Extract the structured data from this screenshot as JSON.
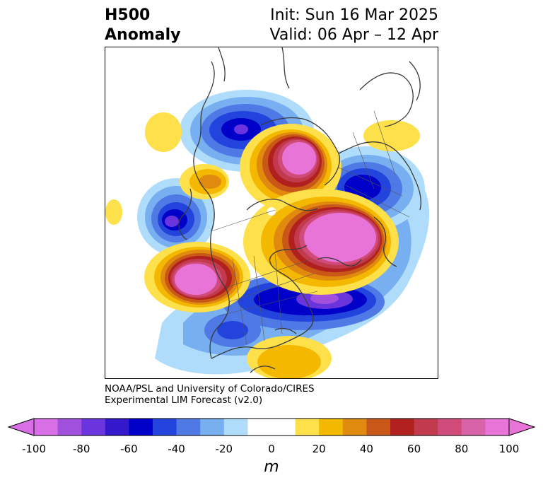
{
  "title": {
    "left_line1": "H500",
    "left_line2": "Anomaly",
    "right_line1": "Init: Sun 16 Mar 2025",
    "right_line2": "Valid: 06 Apr – 12 Apr"
  },
  "credit": {
    "line1": "NOAA/PSL and University of Colorado/CIRES",
    "line2": "Experimental LIM Forecast (v2.0)"
  },
  "colorbar": {
    "unit": "m",
    "ticks": [
      "-100",
      "-80",
      "-60",
      "-40",
      "-20",
      "0",
      "20",
      "40",
      "60",
      "80",
      "100"
    ],
    "colors": [
      "#d86fe6",
      "#a050dc",
      "#6a35dc",
      "#3318cc",
      "#0000c8",
      "#2244dd",
      "#4f7ae6",
      "#78aff0",
      "#aedcfa",
      "#ffffff",
      "#ffffff",
      "#fde04a",
      "#f5b800",
      "#e08a10",
      "#c85718",
      "#b0201e",
      "#c23a4e",
      "#d04a7a",
      "#d863a8",
      "#e874d8"
    ]
  },
  "map": {
    "anomaly_colors": {
      "neg_light": "#aedcfa",
      "neg_mid1": "#78aff0",
      "neg_mid2": "#4f7ae6",
      "neg_dark1": "#2244dd",
      "neg_dark2": "#0000c8",
      "neg_core": "#6a35dc",
      "pos_light": "#fde04a",
      "pos_mid1": "#f5b800",
      "pos_mid2": "#e08a10",
      "pos_dark1": "#c85718",
      "pos_dark2": "#b0201e",
      "pos_core1": "#c23a4e",
      "pos_core2": "#e874d8"
    }
  }
}
